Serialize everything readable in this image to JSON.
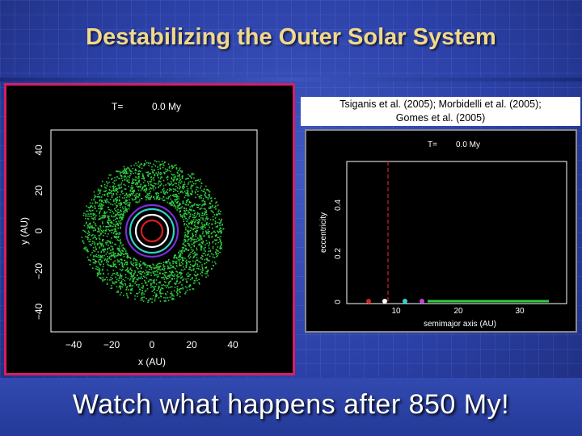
{
  "slide": {
    "title": "Destabilizing the Outer Solar System",
    "citation_line1": "Tsiganis et al. (2005); Morbidelli et al. (2005);",
    "citation_line2": "Gomes et al. (2005)",
    "caption": "Watch what happens after 850 My!"
  },
  "left_plot": {
    "time_label": "T=",
    "time_value": "0.0 My",
    "xlabel": "x (AU)",
    "ylabel": "y (AU)",
    "xticks": [
      "−40",
      "−20",
      "0",
      "20",
      "40"
    ],
    "yticks": [
      "40",
      "20",
      "0",
      "−20",
      "−40"
    ],
    "ring_colors": [
      "#d81e1e",
      "#ffffff",
      "#2fd6c8",
      "#7a2fd6"
    ],
    "disk_color": "#2ecc40"
  },
  "right_plot": {
    "time_label": "T=",
    "time_value": "0.0 My",
    "xlabel": "semimajor axis (AU)",
    "ylabel": "eccentricity",
    "xticks": [
      "10",
      "20",
      "30"
    ],
    "yticks": [
      "0",
      "0.2",
      "0.4"
    ],
    "planet_colors": [
      "#d81e1e",
      "#ffffff",
      "#2fd6c8",
      "#c83fd6"
    ],
    "disk_color": "#2ecc40"
  }
}
